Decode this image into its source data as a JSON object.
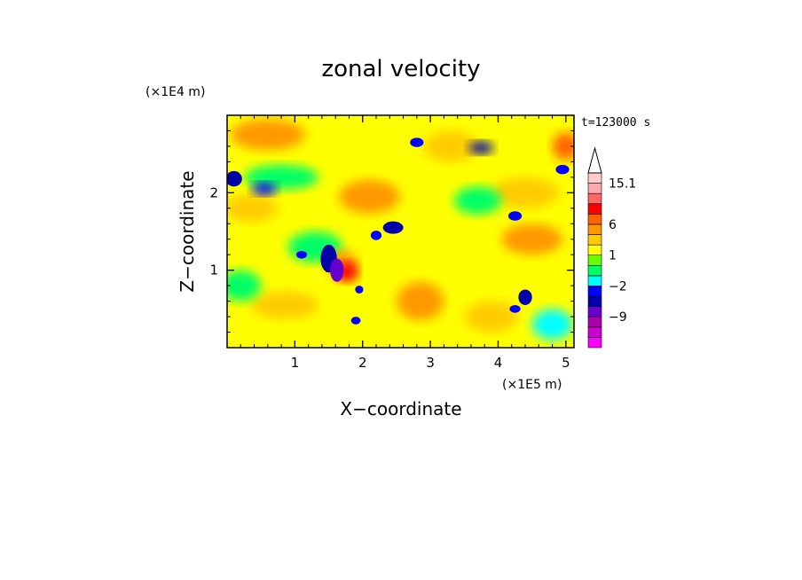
{
  "chart_data": {
    "type": "heatmap",
    "title": "zonal velocity",
    "xlabel": "X−coordinate",
    "ylabel": "Z−coordinate",
    "x_unit": "(×1E5 m)",
    "y_unit": "(×1E4 m)",
    "timestamp": "t=123000 s",
    "xlim": [
      0,
      5.12
    ],
    "ylim": [
      0,
      3.0
    ],
    "x_ticks": [
      {
        "v": 1,
        "label": "1"
      },
      {
        "v": 2,
        "label": "2"
      },
      {
        "v": 3,
        "label": "3"
      },
      {
        "v": 4,
        "label": "4"
      },
      {
        "v": 5,
        "label": "5"
      }
    ],
    "y_ticks": [
      {
        "v": 1,
        "label": "1"
      },
      {
        "v": 2,
        "label": "2"
      }
    ],
    "colorbar": {
      "levels": [
        {
          "color": "#ff00ff",
          "label": ""
        },
        {
          "color": "#cc00cc",
          "label": ""
        },
        {
          "color": "#aa00aa",
          "label": "−9"
        },
        {
          "color": "#6600cc",
          "label": ""
        },
        {
          "color": "#0000aa",
          "label": ""
        },
        {
          "color": "#0000ff",
          "label": "−2"
        },
        {
          "color": "#00ffff",
          "label": ""
        },
        {
          "color": "#00ff66",
          "label": ""
        },
        {
          "color": "#66ff00",
          "label": "1"
        },
        {
          "color": "#ffff00",
          "label": ""
        },
        {
          "color": "#ffcc00",
          "label": ""
        },
        {
          "color": "#ff9900",
          "label": "6"
        },
        {
          "color": "#ff6600",
          "label": ""
        },
        {
          "color": "#ff0000",
          "label": ""
        },
        {
          "color": "#ff6666",
          "label": ""
        },
        {
          "color": "#ffaaaa",
          "label": "15.1"
        },
        {
          "color": "#ffcccc",
          "label": ""
        }
      ]
    },
    "blobs": [
      {
        "x": 1.77,
        "z": 0.98,
        "rx": 0.16,
        "rz": 0.13,
        "level": 13
      },
      {
        "x": 1.7,
        "z": 1.08,
        "rx": 0.22,
        "rz": 0.18,
        "level": 11
      },
      {
        "x": 1.55,
        "z": 0.92,
        "rx": 0.35,
        "rz": 0.28,
        "level": 9
      },
      {
        "x": 0.6,
        "z": 2.75,
        "rx": 0.55,
        "rz": 0.2,
        "level": 11
      },
      {
        "x": 0.35,
        "z": 1.8,
        "rx": 0.4,
        "rz": 0.18,
        "level": 10
      },
      {
        "x": 2.1,
        "z": 1.95,
        "rx": 0.45,
        "rz": 0.22,
        "level": 11
      },
      {
        "x": 2.85,
        "z": 0.6,
        "rx": 0.35,
        "rz": 0.25,
        "level": 11
      },
      {
        "x": 4.5,
        "z": 1.4,
        "rx": 0.45,
        "rz": 0.2,
        "level": 11
      },
      {
        "x": 4.4,
        "z": 2.0,
        "rx": 0.5,
        "rz": 0.2,
        "level": 10
      },
      {
        "x": 3.3,
        "z": 2.6,
        "rx": 0.4,
        "rz": 0.2,
        "level": 10
      },
      {
        "x": 0.85,
        "z": 0.55,
        "rx": 0.5,
        "rz": 0.18,
        "level": 10
      },
      {
        "x": 3.9,
        "z": 0.4,
        "rx": 0.4,
        "rz": 0.2,
        "level": 10
      },
      {
        "x": 5.0,
        "z": 2.6,
        "rx": 0.2,
        "rz": 0.18,
        "level": 12
      },
      {
        "x": 0.8,
        "z": 2.2,
        "rx": 0.55,
        "rz": 0.16,
        "level": 7
      },
      {
        "x": 1.3,
        "z": 1.3,
        "rx": 0.4,
        "rz": 0.2,
        "level": 7
      },
      {
        "x": 3.7,
        "z": 1.9,
        "rx": 0.35,
        "rz": 0.18,
        "level": 7
      },
      {
        "x": 0.2,
        "z": 0.8,
        "rx": 0.3,
        "rz": 0.2,
        "level": 7
      },
      {
        "x": 4.8,
        "z": 0.3,
        "rx": 0.3,
        "rz": 0.2,
        "level": 6
      },
      {
        "x": 3.75,
        "z": 2.58,
        "rx": 0.18,
        "rz": 0.08,
        "level": 4
      },
      {
        "x": 2.8,
        "z": 2.65,
        "rx": 0.1,
        "rz": 0.06,
        "level": 5
      },
      {
        "x": 0.1,
        "z": 2.18,
        "rx": 0.12,
        "rz": 0.1,
        "level": 4
      },
      {
        "x": 0.55,
        "z": 2.05,
        "rx": 0.18,
        "rz": 0.08,
        "level": 5
      },
      {
        "x": 1.5,
        "z": 1.15,
        "rx": 0.12,
        "rz": 0.18,
        "level": 4
      },
      {
        "x": 1.62,
        "z": 1.0,
        "rx": 0.1,
        "rz": 0.15,
        "level": 3
      },
      {
        "x": 2.45,
        "z": 1.55,
        "rx": 0.15,
        "rz": 0.08,
        "level": 4
      },
      {
        "x": 2.2,
        "z": 1.45,
        "rx": 0.08,
        "rz": 0.06,
        "level": 5
      },
      {
        "x": 4.4,
        "z": 0.65,
        "rx": 0.1,
        "rz": 0.1,
        "level": 4
      },
      {
        "x": 4.25,
        "z": 0.5,
        "rx": 0.08,
        "rz": 0.05,
        "level": 5
      },
      {
        "x": 4.95,
        "z": 2.3,
        "rx": 0.1,
        "rz": 0.06,
        "level": 5
      },
      {
        "x": 4.25,
        "z": 1.7,
        "rx": 0.1,
        "rz": 0.06,
        "level": 5
      },
      {
        "x": 1.95,
        "z": 0.75,
        "rx": 0.06,
        "rz": 0.05,
        "level": 5
      },
      {
        "x": 1.9,
        "z": 0.35,
        "rx": 0.07,
        "rz": 0.05,
        "level": 5
      },
      {
        "x": 1.1,
        "z": 1.2,
        "rx": 0.08,
        "rz": 0.05,
        "level": 5
      }
    ]
  }
}
